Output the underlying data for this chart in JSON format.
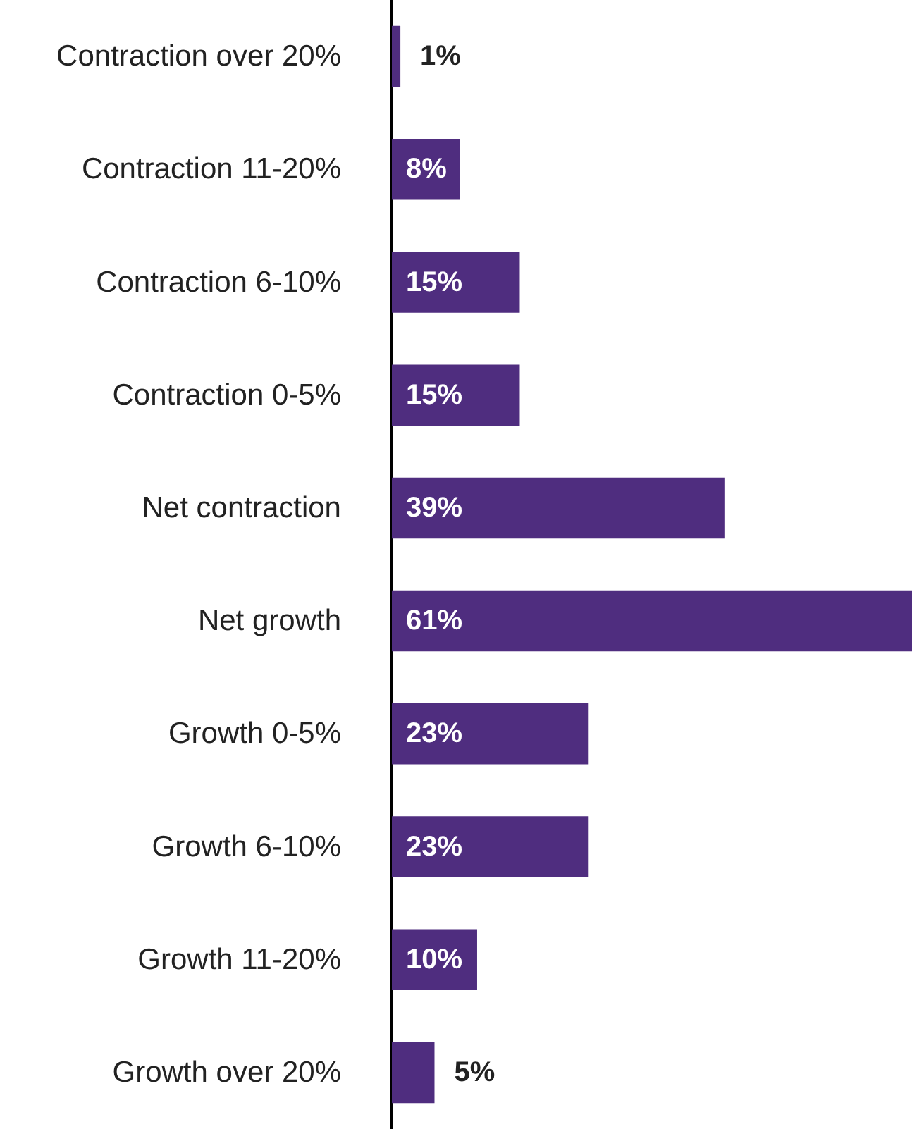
{
  "chart_data": {
    "type": "bar",
    "orientation": "horizontal",
    "categories": [
      "Contraction over 20%",
      "Contraction 11-20%",
      "Contraction 6-10%",
      "Contraction 0-5%",
      "Net contraction",
      "Net growth",
      "Growth 0-5%",
      "Growth 6-10%",
      "Growth 11-20%",
      "Growth over 20%"
    ],
    "values": [
      1,
      8,
      15,
      15,
      39,
      61,
      23,
      23,
      10,
      5
    ],
    "value_labels": [
      "1%",
      "8%",
      "15%",
      "15%",
      "39%",
      "61%",
      "23%",
      "23%",
      "10%",
      "5%"
    ],
    "color": "#4f2d7f"
  }
}
